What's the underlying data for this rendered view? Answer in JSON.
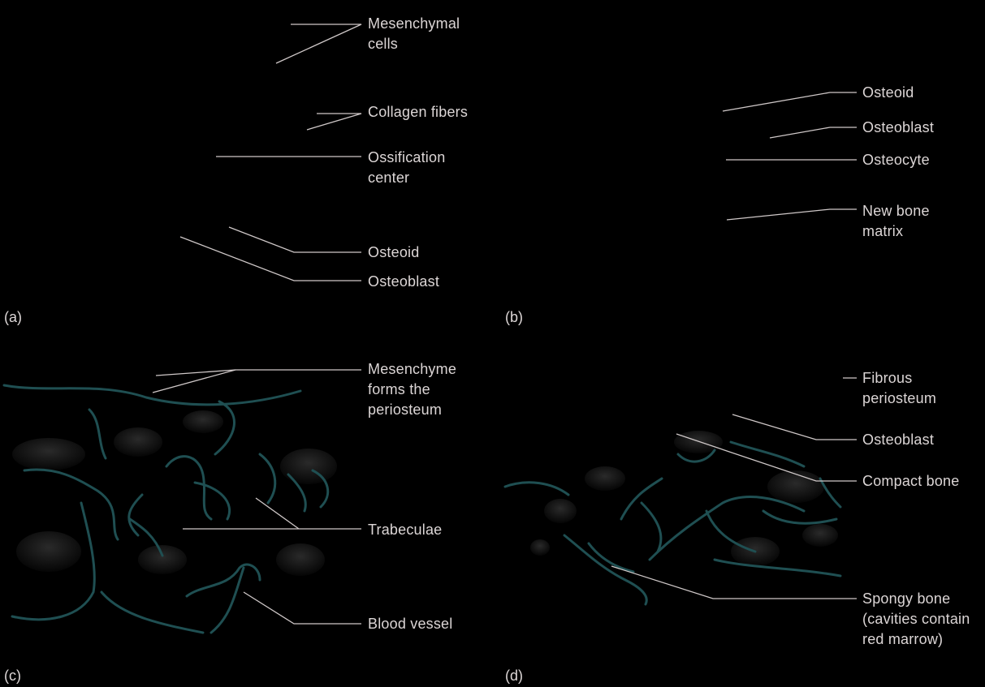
{
  "panels": {
    "a": {
      "letter": "(a)",
      "labels": {
        "mesenchymal_cells_1": "Mesenchymal",
        "mesenchymal_cells_2": "cells",
        "collagen_fibers": "Collagen fibers",
        "ossification_center_1": "Ossification",
        "ossification_center_2": "center",
        "osteoid": "Osteoid",
        "osteoblast": "Osteoblast"
      }
    },
    "b": {
      "letter": "(b)",
      "labels": {
        "osteoid": "Osteoid",
        "osteoblast": "Osteoblast",
        "osteocyte": "Osteocyte",
        "new_bone_matrix_1": "New bone",
        "new_bone_matrix_2": "matrix"
      }
    },
    "c": {
      "letter": "(c)",
      "labels": {
        "mesenchyme_1": "Mesenchyme",
        "mesenchyme_2": "forms the",
        "mesenchyme_3": "periosteum",
        "trabeculae": "Trabeculae",
        "blood_vessel": "Blood vessel"
      }
    },
    "d": {
      "letter": "(d)",
      "labels": {
        "fibrous_periosteum_1": "Fibrous",
        "fibrous_periosteum_2": "periosteum",
        "osteoblast": "Osteoblast",
        "compact_bone": "Compact bone",
        "spongy_bone_1": "Spongy bone",
        "spongy_bone_2": "(cavities contain",
        "spongy_bone_3": "red marrow)"
      }
    }
  },
  "colors": {
    "background": "#000000",
    "label_text": "#dcd6d6",
    "leader_line": "#cfc8c8",
    "vessel": "#1f4f52",
    "tissue": "#1a1a1a"
  }
}
